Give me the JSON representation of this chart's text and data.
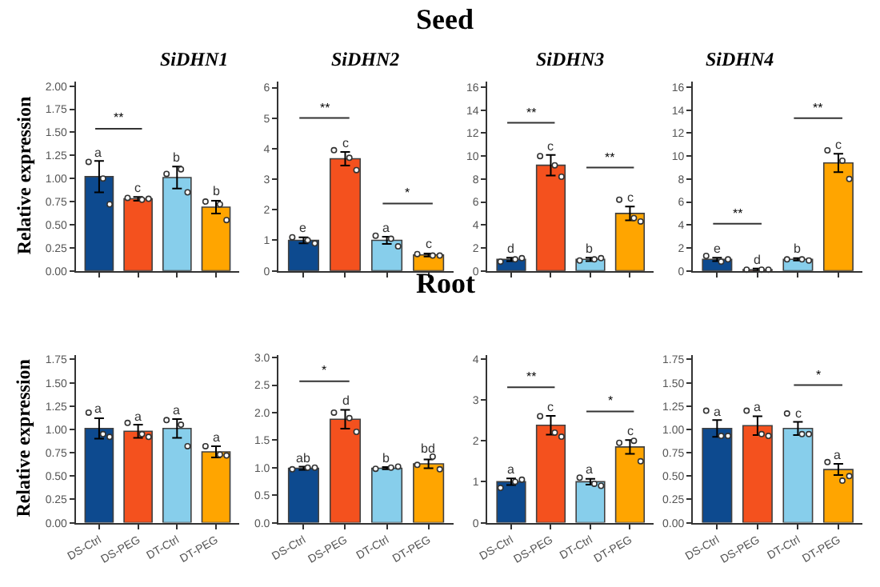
{
  "chart_data": [
    {
      "type": "other",
      "title": "Seed"
    },
    {
      "type": "bar",
      "title": "SiDHN1",
      "ylabel": "Relative expression",
      "annotations": [
        "**"
      ],
      "categories": [
        null,
        null,
        null,
        null
      ],
      "tick_labels": "y",
      "ylim": [
        0,
        2.05
      ],
      "yticks": [
        {
          "value": 0,
          "label": "0.00"
        },
        {
          "value": 0.25,
          "label": "0.25"
        },
        {
          "value": 0.5,
          "label": "0.50"
        },
        {
          "value": 0.75,
          "label": "0.75"
        },
        {
          "value": 1,
          "label": "1.00"
        },
        {
          "value": 1.25,
          "label": "1.25"
        },
        {
          "value": 1.5,
          "label": "1.50"
        },
        {
          "value": 1.75,
          "label": "1.75"
        },
        {
          "value": 2,
          "label": "2.00"
        }
      ],
      "series": [
        {
          "colors": [
            "#0d4a8f",
            "#f4511e",
            "#87ceeb",
            "#ffa500"
          ],
          "values": [
            1.02,
            0.78,
            1.01,
            0.69
          ],
          "errors": [
            0.17,
            0.02,
            0.12,
            0.07
          ],
          "value_labels": [
            "a",
            "c",
            "b",
            "b"
          ]
        },
        {
          "type": "scatter",
          "marker": "circle",
          "color": "#ffffff",
          "values": [
            1.18,
            0.79,
            1.05,
            0.75
          ]
        },
        {
          "type": "scatter",
          "marker": "circle",
          "color": "#ffffff",
          "values": [
            0.72,
            0.78,
            0.85,
            0.55
          ]
        },
        {
          "type": "scatter",
          "marker": "circle",
          "color": "#ffffff",
          "values": [
            1.0,
            0.77,
            1.1,
            0.72
          ]
        }
      ]
    },
    {
      "type": "bar",
      "title": "SiDHN2",
      "annotations": [
        "**",
        "*"
      ],
      "categories": [
        null,
        null,
        null,
        null
      ],
      "tick_labels": "y",
      "ylim": [
        0,
        6.2
      ],
      "yticks": [
        0,
        1,
        2,
        3,
        4,
        5,
        6
      ],
      "series": [
        {
          "colors": [
            "#0d4a8f",
            "#f4511e",
            "#87ceeb",
            "#ffa500"
          ],
          "values": [
            1.0,
            3.67,
            1.0,
            0.52
          ],
          "errors": [
            0.1,
            0.22,
            0.12,
            0.05
          ],
          "value_labels": [
            "e",
            "c",
            "a",
            "c"
          ]
        },
        {
          "type": "scatter",
          "marker": "circle",
          "color": "#ffffff",
          "values": [
            1.1,
            3.95,
            1.15,
            0.55
          ]
        },
        {
          "type": "scatter",
          "marker": "circle",
          "color": "#ffffff",
          "values": [
            0.9,
            3.3,
            0.8,
            0.5
          ]
        },
        {
          "type": "scatter",
          "marker": "circle",
          "color": "#ffffff",
          "values": [
            1.0,
            3.7,
            1.05,
            0.5
          ]
        }
      ]
    },
    {
      "type": "bar",
      "title": "SiDHN3",
      "annotations": [
        "**",
        "**"
      ],
      "categories": [
        null,
        null,
        null,
        null
      ],
      "tick_labels": "y",
      "ylim": [
        0,
        16.5
      ],
      "yticks": [
        0,
        2,
        4,
        6,
        8,
        10,
        12,
        14,
        16
      ],
      "series": [
        {
          "colors": [
            "#0d4a8f",
            "#f4511e",
            "#87ceeb",
            "#ffa500"
          ],
          "values": [
            1.0,
            9.2,
            1.0,
            5.0
          ],
          "errors": [
            0.15,
            0.9,
            0.15,
            0.6
          ],
          "value_labels": [
            "d",
            "c",
            "b",
            "c"
          ]
        },
        {
          "type": "scatter",
          "marker": "circle",
          "color": "#ffffff",
          "values": [
            0.8,
            10.0,
            0.9,
            6.2
          ]
        },
        {
          "type": "scatter",
          "marker": "circle",
          "color": "#ffffff",
          "values": [
            1.1,
            8.2,
            1.1,
            4.3
          ]
        },
        {
          "type": "scatter",
          "marker": "circle",
          "color": "#ffffff",
          "values": [
            1.0,
            9.2,
            1.0,
            4.6
          ]
        }
      ]
    },
    {
      "type": "bar",
      "title": "SiDHN4",
      "annotations": [
        "**",
        "**"
      ],
      "categories": [
        null,
        null,
        null,
        null
      ],
      "tick_labels": "y",
      "ylim": [
        0,
        16.5
      ],
      "yticks": [
        0,
        2,
        4,
        6,
        8,
        10,
        12,
        14,
        16
      ],
      "series": [
        {
          "colors": [
            "#0d4a8f",
            "#f4511e",
            "#87ceeb",
            "#ffa500"
          ],
          "values": [
            1.0,
            0.1,
            1.0,
            9.4
          ],
          "errors": [
            0.15,
            0.1,
            0.1,
            0.8
          ],
          "value_labels": [
            "e",
            "d",
            "b",
            "c"
          ]
        },
        {
          "type": "scatter",
          "marker": "circle",
          "color": "#ffffff",
          "values": [
            1.3,
            0.1,
            1.0,
            10.5
          ]
        },
        {
          "type": "scatter",
          "marker": "circle",
          "color": "#ffffff",
          "values": [
            1.0,
            0.1,
            0.9,
            8.0
          ]
        },
        {
          "type": "scatter",
          "marker": "circle",
          "color": "#ffffff",
          "values": [
            0.8,
            0.1,
            1.0,
            9.6
          ]
        }
      ]
    },
    {
      "type": "other",
      "title": "Root"
    },
    {
      "type": "bar",
      "ylabel": "Relative expression",
      "categories": [
        "DS-Ctrl",
        "DS-PEG",
        "DT-Ctrl",
        "DT-PEG"
      ],
      "ylim": [
        0,
        1.8
      ],
      "yticks": [
        {
          "value": 0,
          "label": "0.00"
        },
        {
          "value": 0.25,
          "label": "0.25"
        },
        {
          "value": 0.5,
          "label": "0.50"
        },
        {
          "value": 0.75,
          "label": "0.75"
        },
        {
          "value": 1,
          "label": "1.00"
        },
        {
          "value": 1.25,
          "label": "1.25"
        },
        {
          "value": 1.5,
          "label": "1.50"
        },
        {
          "value": 1.75,
          "label": "1.75"
        }
      ],
      "series": [
        {
          "colors": [
            "#0d4a8f",
            "#f4511e",
            "#87ceeb",
            "#ffa500"
          ],
          "values": [
            1.01,
            0.98,
            1.01,
            0.76
          ],
          "errors": [
            0.11,
            0.07,
            0.1,
            0.06
          ],
          "value_labels": [
            "a",
            "a",
            "a",
            "a"
          ]
        },
        {
          "type": "scatter",
          "marker": "circle",
          "color": "#ffffff",
          "values": [
            1.18,
            1.07,
            1.1,
            0.82
          ]
        },
        {
          "type": "scatter",
          "marker": "circle",
          "color": "#ffffff",
          "values": [
            0.92,
            0.92,
            0.82,
            0.72
          ]
        },
        {
          "type": "scatter",
          "marker": "circle",
          "color": "#ffffff",
          "values": [
            0.95,
            0.95,
            1.05,
            0.73
          ]
        }
      ]
    },
    {
      "type": "bar",
      "annotations": [
        "*"
      ],
      "categories": [
        "DS-Ctrl",
        "DS-PEG",
        "DT-Ctrl",
        "DT-PEG"
      ],
      "ylim": [
        0,
        3.05
      ],
      "yticks": [
        {
          "value": 0,
          "label": "0.0"
        },
        {
          "value": 0.5,
          "label": "0.5"
        },
        {
          "value": 1,
          "label": "1.0"
        },
        {
          "value": 1.5,
          "label": "1.5"
        },
        {
          "value": 2,
          "label": "2.0"
        },
        {
          "value": 2.5,
          "label": "2.5"
        },
        {
          "value": 3,
          "label": "3.0"
        }
      ],
      "series": [
        {
          "colors": [
            "#0d4a8f",
            "#f4511e",
            "#87ceeb",
            "#ffa500"
          ],
          "values": [
            0.99,
            1.88,
            0.99,
            1.07
          ],
          "errors": [
            0.03,
            0.17,
            0.02,
            0.08
          ],
          "value_labels": [
            "ab",
            "d",
            "b",
            "bd"
          ]
        },
        {
          "type": "scatter",
          "marker": "circle",
          "color": "#ffffff",
          "values": [
            0.97,
            2.0,
            0.98,
            1.05
          ]
        },
        {
          "type": "scatter",
          "marker": "circle",
          "color": "#ffffff",
          "values": [
            1.0,
            1.65,
            1.02,
            0.97
          ]
        },
        {
          "type": "scatter",
          "marker": "circle",
          "color": "#ffffff",
          "values": [
            1.0,
            1.9,
            1.0,
            1.2
          ]
        }
      ]
    },
    {
      "type": "bar",
      "annotations": [
        "**",
        "*"
      ],
      "categories": [
        "DS-Ctrl",
        "DS-PEG",
        "DT-Ctrl",
        "DT-PEG"
      ],
      "ylim": [
        0,
        4.1
      ],
      "yticks": [
        0,
        1,
        2,
        3,
        4
      ],
      "series": [
        {
          "colors": [
            "#0d4a8f",
            "#f4511e",
            "#87ceeb",
            "#ffa500"
          ],
          "values": [
            1.0,
            2.38,
            1.0,
            1.85
          ],
          "errors": [
            0.08,
            0.23,
            0.07,
            0.17
          ],
          "value_labels": [
            "a",
            "c",
            "a",
            "c"
          ]
        },
        {
          "type": "scatter",
          "marker": "circle",
          "color": "#ffffff",
          "values": [
            0.85,
            2.6,
            1.1,
            1.95
          ]
        },
        {
          "type": "scatter",
          "marker": "circle",
          "color": "#ffffff",
          "values": [
            1.05,
            2.1,
            0.9,
            1.5
          ]
        },
        {
          "type": "scatter",
          "marker": "circle",
          "color": "#ffffff",
          "values": [
            1.0,
            2.2,
            0.95,
            2.0
          ]
        }
      ]
    },
    {
      "type": "bar",
      "annotations": [
        "*"
      ],
      "categories": [
        "DS-Ctrl",
        "DS-PEG",
        "DT-Ctrl",
        "DT-PEG"
      ],
      "ylim": [
        0,
        1.8
      ],
      "yticks": [
        {
          "value": 0,
          "label": "0.00"
        },
        {
          "value": 0.25,
          "label": "0.25"
        },
        {
          "value": 0.5,
          "label": "0.50"
        },
        {
          "value": 0.75,
          "label": "0.75"
        },
        {
          "value": 1,
          "label": "1.00"
        },
        {
          "value": 1.25,
          "label": "1.25"
        },
        {
          "value": 1.5,
          "label": "1.50"
        },
        {
          "value": 1.75,
          "label": "1.75"
        }
      ],
      "series": [
        {
          "colors": [
            "#0d4a8f",
            "#f4511e",
            "#87ceeb",
            "#ffa500"
          ],
          "values": [
            1.01,
            1.04,
            1.01,
            0.57
          ],
          "errors": [
            0.09,
            0.1,
            0.07,
            0.06
          ],
          "value_labels": [
            "a",
            "a",
            "c",
            "a"
          ]
        },
        {
          "type": "scatter",
          "marker": "circle",
          "color": "#ffffff",
          "values": [
            1.2,
            1.2,
            1.17,
            0.65
          ]
        },
        {
          "type": "scatter",
          "marker": "circle",
          "color": "#ffffff",
          "values": [
            0.93,
            0.93,
            0.95,
            0.5
          ]
        },
        {
          "type": "scatter",
          "marker": "circle",
          "color": "#ffffff",
          "values": [
            0.93,
            0.95,
            0.95,
            0.45
          ]
        }
      ]
    }
  ]
}
